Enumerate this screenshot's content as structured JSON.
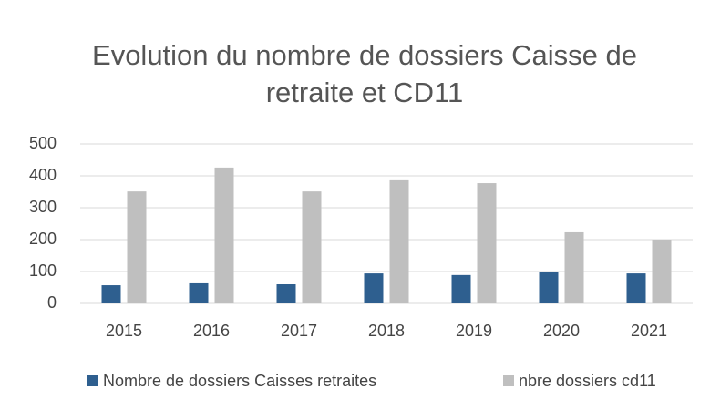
{
  "chart_data": {
    "type": "bar",
    "title": "Evolution du nombre de dossiers Caisse de retraite et CD11",
    "categories": [
      "2015",
      "2016",
      "2017",
      "2018",
      "2019",
      "2020",
      "2021"
    ],
    "series": [
      {
        "name": "Nombre de dossiers Caisses retraites",
        "color": "#2e5f8f",
        "values": [
          57,
          63,
          60,
          94,
          89,
          100,
          94
        ]
      },
      {
        "name": "nbre dossiers cd11",
        "color": "#bfbfbf",
        "values": [
          351,
          426,
          351,
          386,
          377,
          223,
          200
        ]
      }
    ],
    "ylim": [
      0,
      500
    ],
    "yticks": [
      0,
      100,
      200,
      300,
      400,
      500
    ],
    "grid": true,
    "legend": "bottom"
  }
}
